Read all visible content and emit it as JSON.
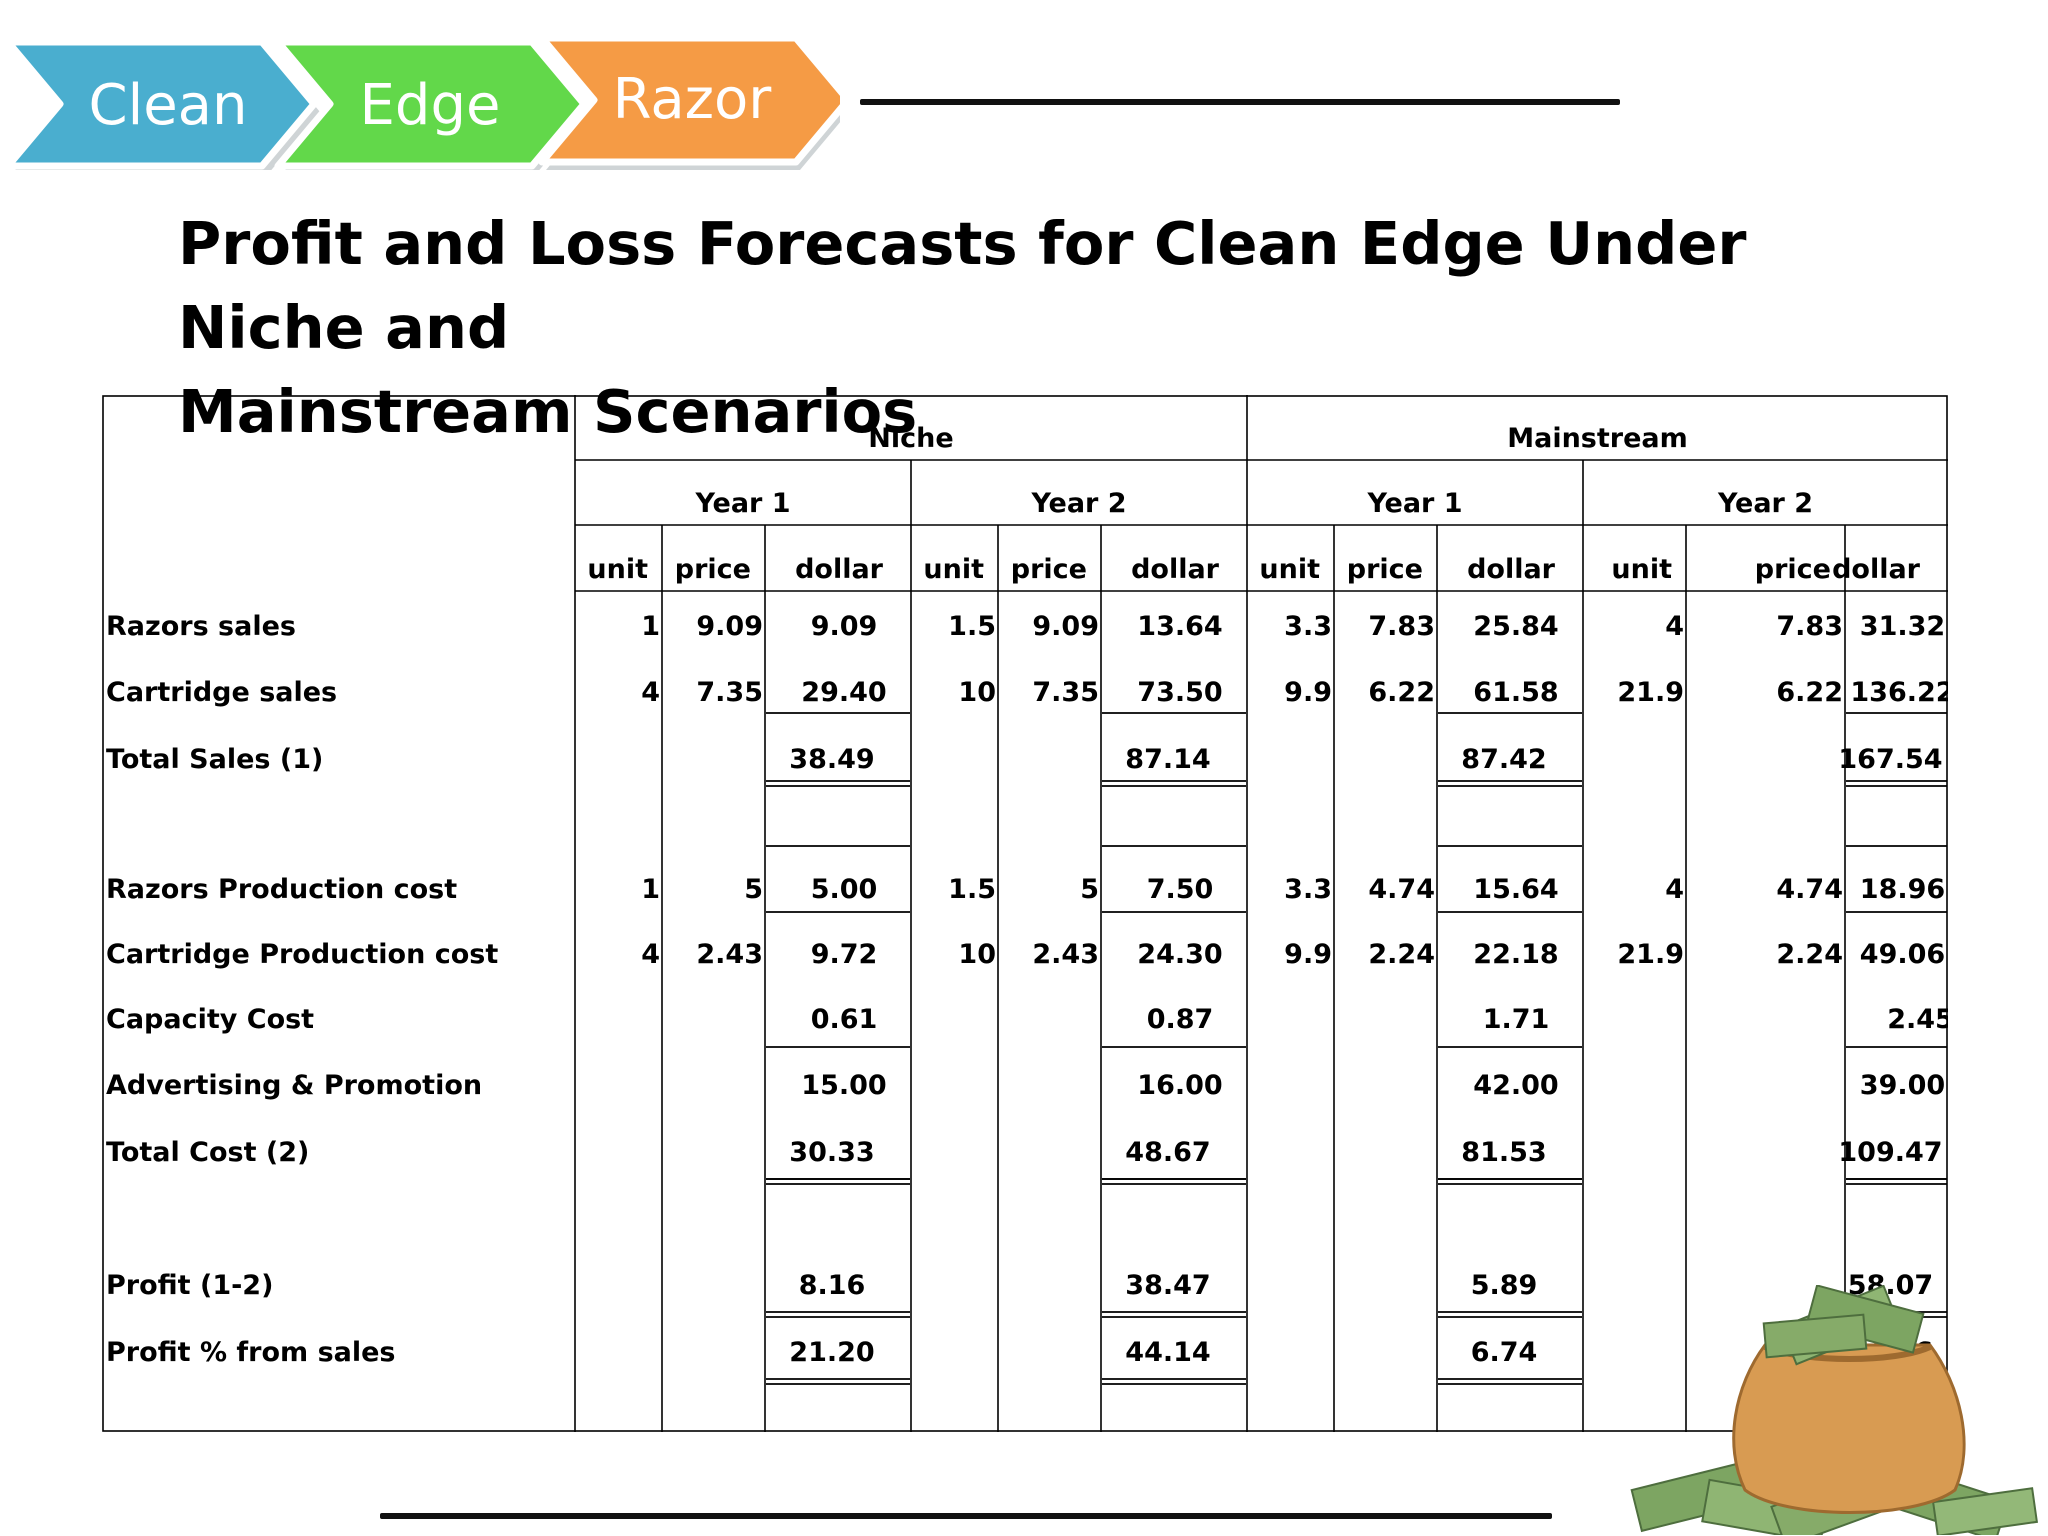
{
  "logo": {
    "steps": [
      {
        "label": "Clean",
        "color": "#4aaecf"
      },
      {
        "label": "Edge",
        "color": "#62d84a"
      },
      {
        "label": "Razor",
        "color": "#f59b45"
      }
    ]
  },
  "title": {
    "line1": "Profit and Loss Forecasts for Clean Edge Under Niche and",
    "line2": "Mainstream Scenarios"
  },
  "table": {
    "scenarios": [
      "Niche",
      "Mainstream"
    ],
    "years": [
      "Year 1",
      "Year 2",
      "Year 1",
      "Year 2"
    ],
    "columns": [
      "unit",
      "price",
      "dollar"
    ],
    "rows": [
      {
        "label": "Razors sales",
        "values": [
          "1",
          "9.09",
          "9.09",
          "1.5",
          "9.09",
          "13.64",
          "3.3",
          "7.83",
          "25.84",
          "4",
          "7.83",
          "31.32"
        ]
      },
      {
        "label": "Cartridge sales",
        "values": [
          "4",
          "7.35",
          "29.40",
          "10",
          "7.35",
          "73.50",
          "9.9",
          "6.22",
          "61.58",
          "21.9",
          "6.22",
          "136.22"
        ]
      },
      {
        "label": "Total Sales (1)",
        "values": [
          "",
          "",
          "38.49",
          "",
          "",
          "87.14",
          "",
          "",
          "87.42",
          "",
          "",
          "167.54"
        ]
      },
      {
        "label": "Razors Production cost",
        "values": [
          "1",
          "5",
          "5.00",
          "1.5",
          "5",
          "7.50",
          "3.3",
          "4.74",
          "15.64",
          "4",
          "4.74",
          "18.96"
        ]
      },
      {
        "label": "Cartridge Production cost",
        "values": [
          "4",
          "2.43",
          "9.72",
          "10",
          "2.43",
          "24.30",
          "9.9",
          "2.24",
          "22.18",
          "21.9",
          "2.24",
          "49.06"
        ]
      },
      {
        "label": "Capacity Cost",
        "values": [
          "",
          "",
          "0.61",
          "",
          "",
          "0.87",
          "",
          "",
          "1.71",
          "",
          "",
          "2.45"
        ]
      },
      {
        "label": "Advertising & Promotion",
        "values": [
          "",
          "",
          "15.00",
          "",
          "",
          "16.00",
          "",
          "",
          "42.00",
          "",
          "",
          "39.00"
        ]
      },
      {
        "label": "Total Cost (2)",
        "values": [
          "",
          "",
          "30.33",
          "",
          "",
          "48.67",
          "",
          "",
          "81.53",
          "",
          "",
          "109.47"
        ]
      },
      {
        "label": "Profit (1-2)",
        "values": [
          "",
          "",
          "8.16",
          "",
          "",
          "38.47",
          "",
          "",
          "5.89",
          "",
          "",
          "58.07"
        ]
      },
      {
        "label": "Profit % from sales",
        "values": [
          "",
          "",
          "21.20",
          "",
          "",
          "44.14",
          "",
          "",
          "6.74",
          "",
          "",
          "34.66"
        ]
      }
    ]
  },
  "illustration": {
    "icon": "money-bag-icon",
    "bag_color": "#d89b52",
    "bill_color": "#7da562"
  }
}
